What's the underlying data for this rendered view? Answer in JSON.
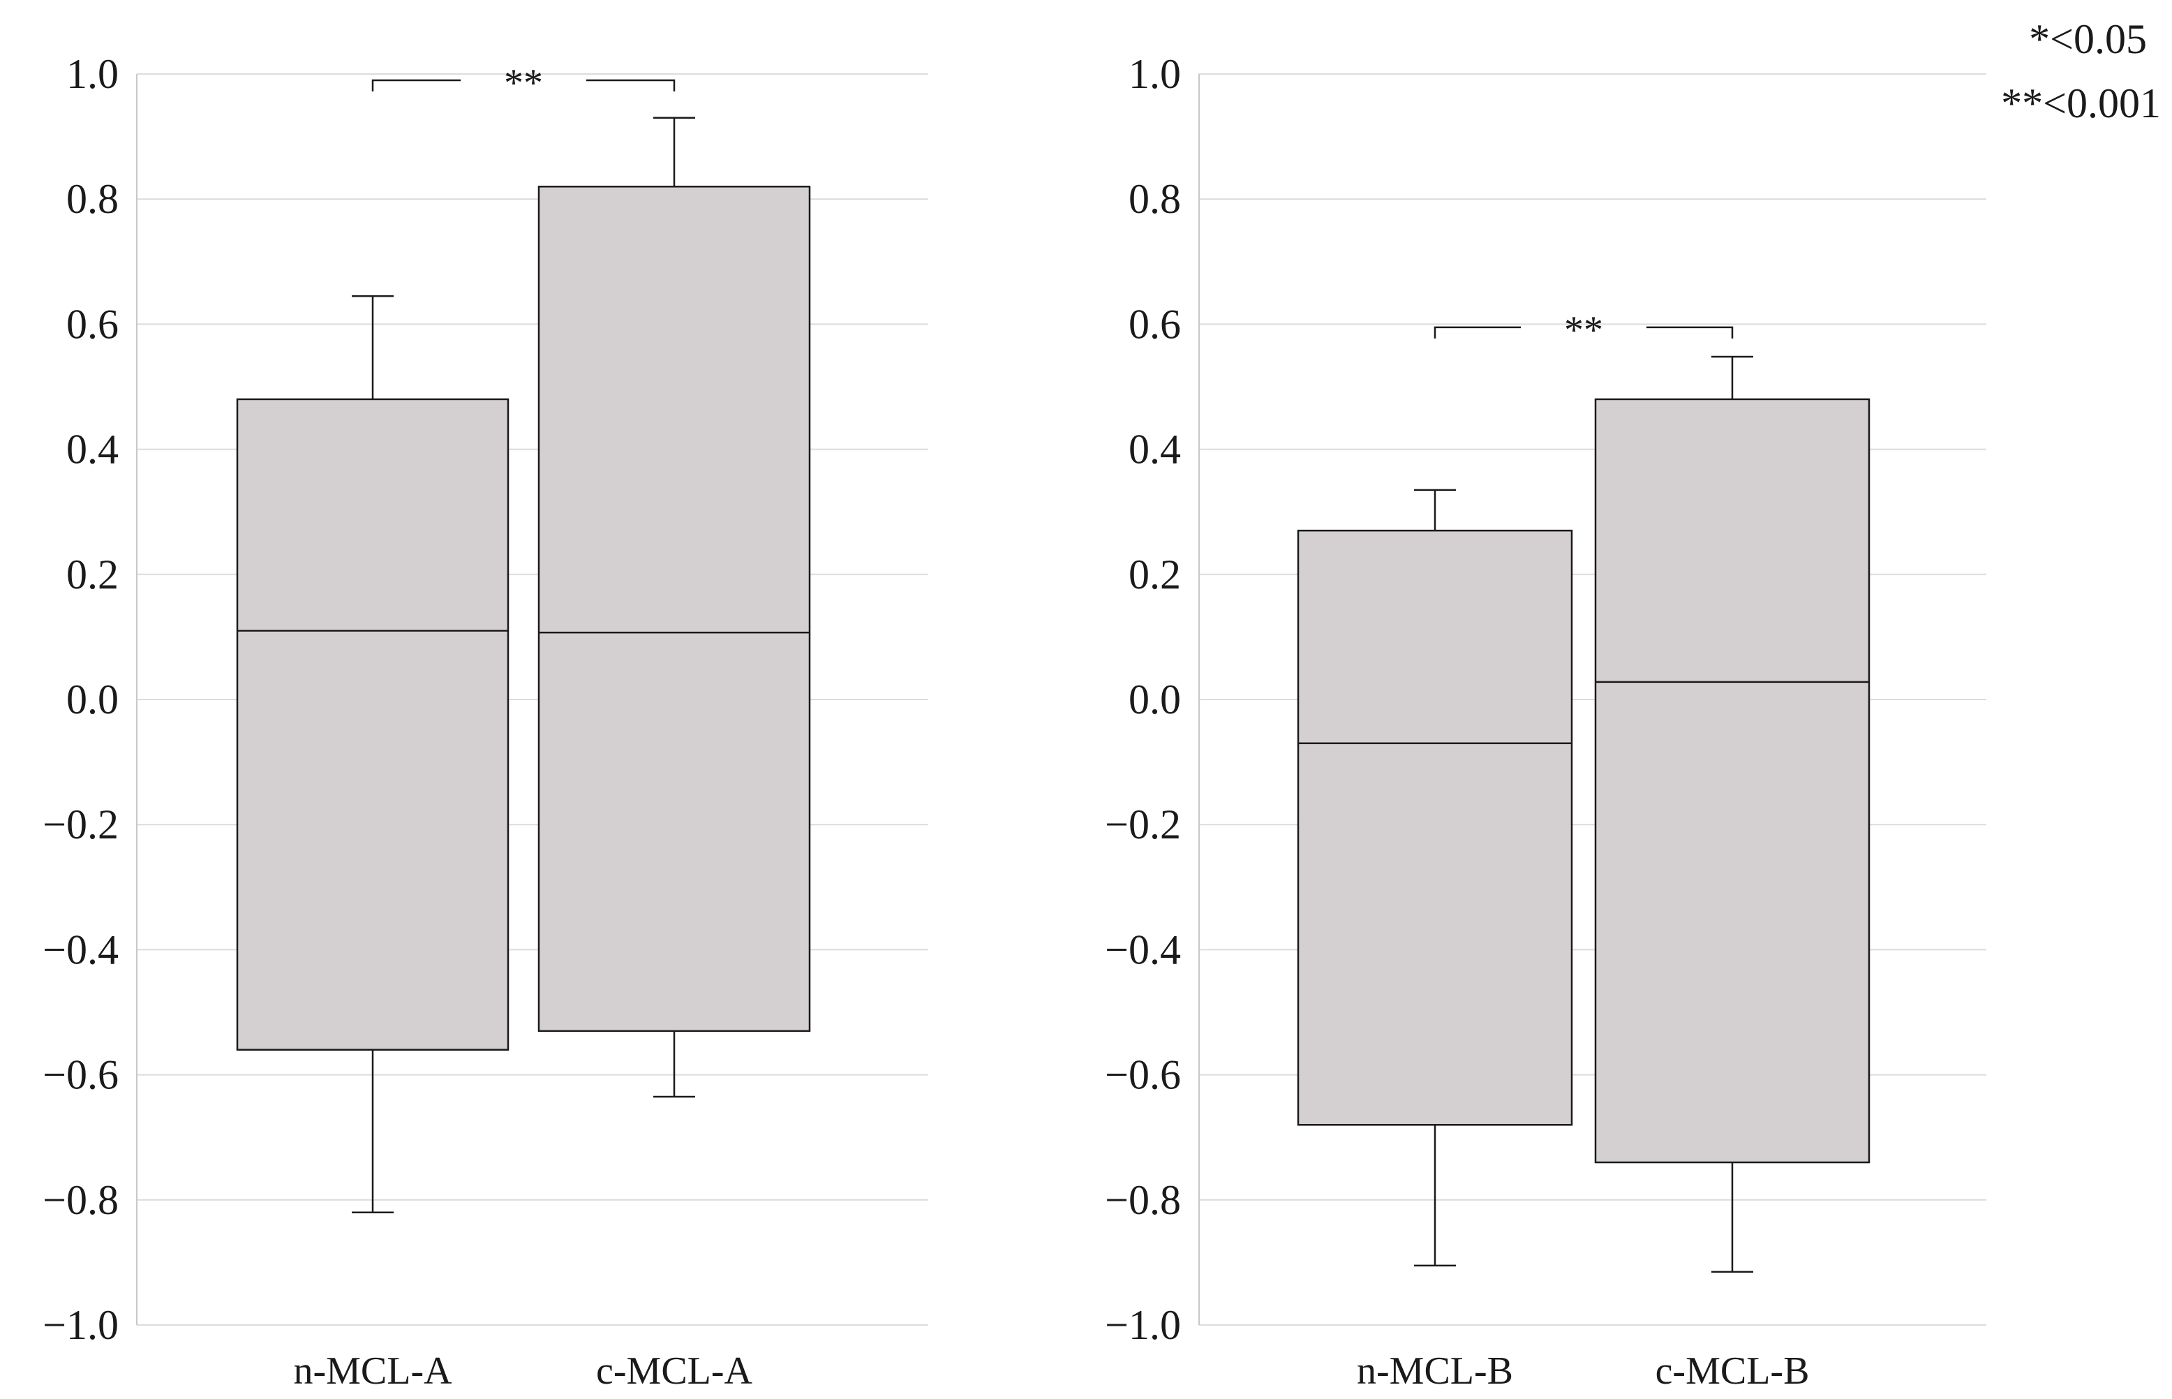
{
  "legend_note": [
    "*<0.05",
    "**<0.001"
  ],
  "colors": {
    "box_fill": "#d4d0d1",
    "stroke": "#1a1a1a",
    "grid": "#dcdcdc"
  },
  "chart_data": [
    {
      "type": "box",
      "title": "",
      "xlabel": "",
      "ylabel": "",
      "ylim": [
        -1.0,
        1.0
      ],
      "yticks": [
        "1.0",
        "0.8",
        "0.6",
        "0.4",
        "0.2",
        "0.0",
        "−0.2",
        "−0.4",
        "−0.6",
        "−0.8",
        "−1.0"
      ],
      "grid": "horizontal",
      "categories": [
        "n-MCL-A",
        "c-MCL-A"
      ],
      "boxes": [
        {
          "label": "n-MCL-A",
          "whisker_low": -0.82,
          "q1": -0.56,
          "median": 0.11,
          "q3": 0.48,
          "whisker_high": 0.645
        },
        {
          "label": "c-MCL-A",
          "whisker_low": -0.635,
          "q1": -0.53,
          "median": 0.107,
          "q3": 0.82,
          "whisker_high": 0.93
        }
      ],
      "significance": {
        "between": [
          "n-MCL-A",
          "c-MCL-A"
        ],
        "label": "**",
        "y": 0.99
      }
    },
    {
      "type": "box",
      "title": "",
      "xlabel": "",
      "ylabel": "",
      "ylim": [
        -1.0,
        1.0
      ],
      "yticks": [
        "1.0",
        "0.8",
        "0.6",
        "0.4",
        "0.2",
        "0.0",
        "−0.2",
        "−0.4",
        "−0.6",
        "−0.8",
        "−1.0"
      ],
      "grid": "horizontal",
      "categories": [
        "n-MCL-B",
        "c-MCL-B"
      ],
      "boxes": [
        {
          "label": "n-MCL-B",
          "whisker_low": -0.905,
          "q1": -0.68,
          "median": -0.07,
          "q3": 0.27,
          "whisker_high": 0.335
        },
        {
          "label": "c-MCL-B",
          "whisker_low": -0.915,
          "q1": -0.74,
          "median": 0.028,
          "q3": 0.48,
          "whisker_high": 0.548
        }
      ],
      "significance": {
        "between": [
          "n-MCL-B",
          "c-MCL-B"
        ],
        "label": "**",
        "y": 0.595
      }
    }
  ]
}
